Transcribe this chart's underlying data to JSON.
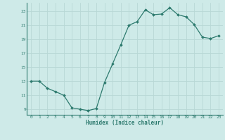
{
  "x": [
    0,
    1,
    2,
    3,
    4,
    5,
    6,
    7,
    8,
    9,
    10,
    11,
    12,
    13,
    14,
    15,
    16,
    17,
    18,
    19,
    20,
    21,
    22,
    23
  ],
  "y": [
    13,
    13,
    12,
    11.5,
    11,
    9.2,
    9.0,
    8.8,
    9.1,
    12.8,
    15.5,
    18.2,
    21.0,
    21.5,
    23.2,
    22.5,
    22.6,
    23.5,
    22.5,
    22.2,
    21.1,
    19.3,
    19.1,
    19.5
  ],
  "line_color": "#2d7a6e",
  "marker_color": "#2d7a6e",
  "bg_color": "#ceeae8",
  "grid_color": "#b8d8d5",
  "axis_color": "#2d7a6e",
  "xlabel": "Humidex (Indice chaleur)",
  "xlabel_color": "#2d7a6e",
  "yticks": [
    9,
    11,
    13,
    15,
    17,
    19,
    21,
    23
  ],
  "xticks": [
    0,
    1,
    2,
    3,
    4,
    5,
    6,
    7,
    8,
    9,
    10,
    11,
    12,
    13,
    14,
    15,
    16,
    17,
    18,
    19,
    20,
    21,
    22,
    23
  ],
  "xlim": [
    -0.5,
    23.5
  ],
  "ylim": [
    8.2,
    24.2
  ]
}
